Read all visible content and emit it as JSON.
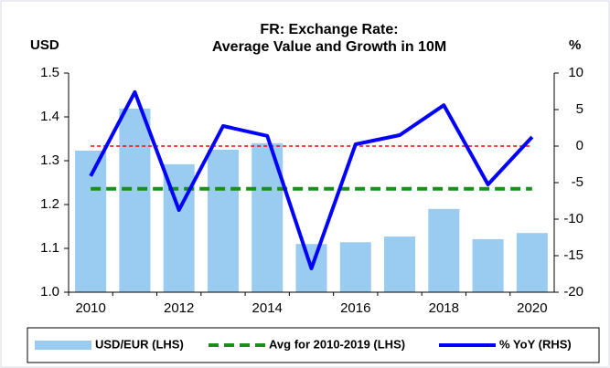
{
  "chart_data": {
    "type": "combo",
    "title": "FR: Exchange Rate:",
    "subtitle": "Average Value and Growth in 10M",
    "ylabel": "USD",
    "y2label": "%",
    "categories": [
      "2010",
      null,
      "2012",
      null,
      "2014",
      null,
      "2016",
      null,
      "2018",
      null,
      "2020"
    ],
    "series": [
      {
        "name": "USD/EUR (LHS)",
        "type": "bar",
        "color": "#99ccf0",
        "values": [
          1.323,
          1.419,
          1.292,
          1.325,
          1.34,
          1.11,
          1.114,
          1.127,
          1.19,
          1.121,
          1.135
        ]
      },
      {
        "name": "Avg for 2010-2019 (LHS)",
        "type": "line",
        "style": "dashed",
        "color": "#1a8f1a",
        "values": [
          1.236,
          1.236,
          1.236,
          1.236,
          1.236,
          1.236,
          1.236,
          1.236,
          1.236,
          1.236,
          1.236
        ]
      },
      {
        "name": "% YoY (RHS)",
        "type": "line",
        "style": "solid",
        "color": "#0000ff",
        "axis": "y2",
        "values": [
          -4.1,
          7.4,
          -8.75,
          2.75,
          1.4,
          -16.75,
          0.25,
          1.5,
          5.6,
          -5.25,
          1.25
        ]
      }
    ],
    "reference_lines": [
      {
        "value": 0,
        "axis": "y2",
        "color": "#ff0000"
      }
    ],
    "ylim": [
      1.0,
      1.5
    ],
    "yticks": [
      {
        "value": 1.0,
        "label": "1.0"
      },
      1.1,
      1.2,
      1.3,
      1.4,
      1.5
    ],
    "y2lim": [
      -20,
      10
    ],
    "y2ticks": [
      -20,
      -15,
      -10,
      -5,
      0,
      5,
      10
    ],
    "legend": "bottom"
  }
}
